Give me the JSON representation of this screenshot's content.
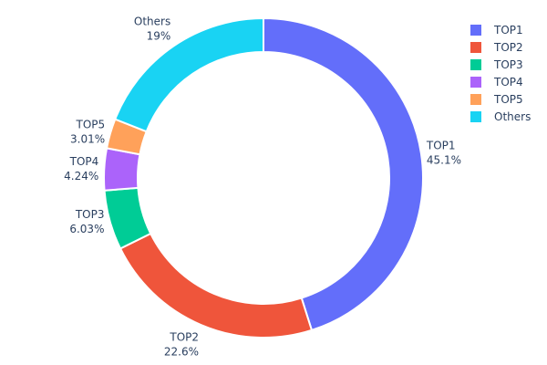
{
  "chart_data": {
    "type": "pie",
    "hole": true,
    "title": "",
    "categories": [
      "TOP1",
      "TOP2",
      "TOP3",
      "TOP4",
      "TOP5",
      "Others"
    ],
    "values": [
      45.1,
      22.6,
      6.03,
      4.24,
      3.01,
      19
    ],
    "value_labels": [
      "45.1%",
      "22.6%",
      "6.03%",
      "4.24%",
      "3.01%",
      "19%"
    ],
    "colors": [
      "#636efa",
      "#ef553b",
      "#00cc96",
      "#ab63fa",
      "#ffa15a",
      "#19d3f3"
    ],
    "legend_position": "top-right"
  }
}
